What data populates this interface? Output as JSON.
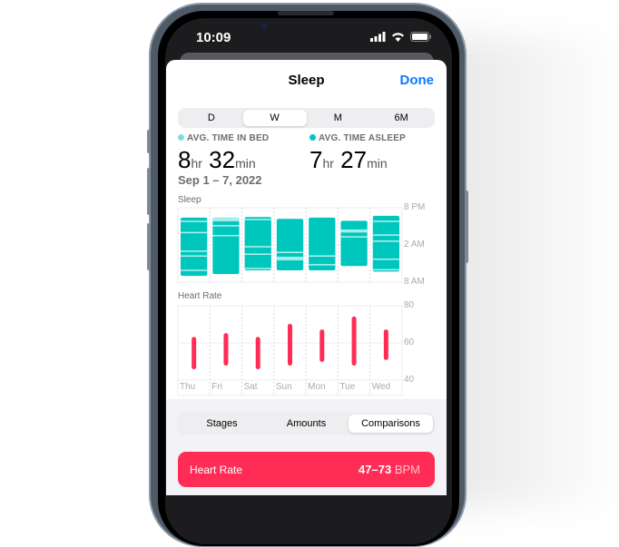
{
  "status": {
    "time": "10:09"
  },
  "nav": {
    "title": "Sleep",
    "done": "Done"
  },
  "range_tabs": [
    {
      "label": "D",
      "selected": false
    },
    {
      "label": "W",
      "selected": true
    },
    {
      "label": "M",
      "selected": false
    },
    {
      "label": "6M",
      "selected": false
    }
  ],
  "stats": {
    "in_bed": {
      "label": "AVG. TIME IN BED",
      "hours": "8",
      "hr_unit": "hr",
      "minutes": "32",
      "min_unit": "min",
      "color": "#7ddde0"
    },
    "asleep": {
      "label": "AVG. TIME ASLEEP",
      "hours": "7",
      "hr_unit": "hr",
      "minutes": "27",
      "min_unit": "min",
      "color": "#00c7be"
    },
    "date_range": "Sep 1 – 7, 2022"
  },
  "chart_data": [
    {
      "type": "bar",
      "title": "Sleep",
      "categories": [
        "Thu",
        "Fri",
        "Sat",
        "Sun",
        "Mon",
        "Tue",
        "Wed"
      ],
      "y_ticks": [
        "8 PM",
        "2 AM",
        "8 AM"
      ],
      "ylim": [
        "20:00",
        "08:00"
      ],
      "color": "#00c7be",
      "awake_color": "#a8ecea",
      "series": [
        {
          "start": "21:36",
          "end": "07:00",
          "breaks": [
            "22:12",
            "00:00",
            "03:00",
            "03:48",
            "06:06"
          ]
        },
        {
          "start": "21:36",
          "end": "06:42",
          "awake": [
            "21:36",
            "22:12"
          ],
          "breaks": [
            "22:54",
            "00:30"
          ]
        },
        {
          "start": "21:30",
          "end": "06:06",
          "breaks": [
            "21:54",
            "02:18",
            "03:30",
            "05:48"
          ]
        },
        {
          "start": "21:48",
          "end": "06:06",
          "breaks": [
            "03:12"
          ],
          "awake": [
            "03:54",
            "04:30"
          ]
        },
        {
          "start": "21:36",
          "end": "06:06",
          "breaks": [
            "03:48",
            "05:12"
          ]
        },
        {
          "start": "22:06",
          "end": "05:24",
          "awake": [
            "23:30",
            "00:00"
          ],
          "breaks": [
            "00:42"
          ]
        },
        {
          "start": "21:18",
          "end": "06:18",
          "breaks": [
            "22:12",
            "00:24",
            "01:24",
            "04:18",
            "06:00"
          ]
        }
      ]
    },
    {
      "type": "range-bar",
      "title": "Heart Rate",
      "categories": [
        "Thu",
        "Fri",
        "Sat",
        "Sun",
        "Mon",
        "Tue",
        "Wed"
      ],
      "y_ticks": [
        "80",
        "60",
        "40"
      ],
      "ylim": [
        40,
        80
      ],
      "color": "#ff2d55",
      "series": [
        {
          "low": 47,
          "high": 62
        },
        {
          "low": 49,
          "high": 64
        },
        {
          "low": 47,
          "high": 62
        },
        {
          "low": 49,
          "high": 69
        },
        {
          "low": 51,
          "high": 66
        },
        {
          "low": 49,
          "high": 73
        },
        {
          "low": 52,
          "high": 66
        }
      ]
    }
  ],
  "view_tabs": [
    {
      "label": "Stages",
      "selected": false
    },
    {
      "label": "Amounts",
      "selected": false
    },
    {
      "label": "Comparisons",
      "selected": true
    }
  ],
  "heart_card": {
    "label": "Heart Rate",
    "value": "47–73",
    "unit": "BPM"
  }
}
